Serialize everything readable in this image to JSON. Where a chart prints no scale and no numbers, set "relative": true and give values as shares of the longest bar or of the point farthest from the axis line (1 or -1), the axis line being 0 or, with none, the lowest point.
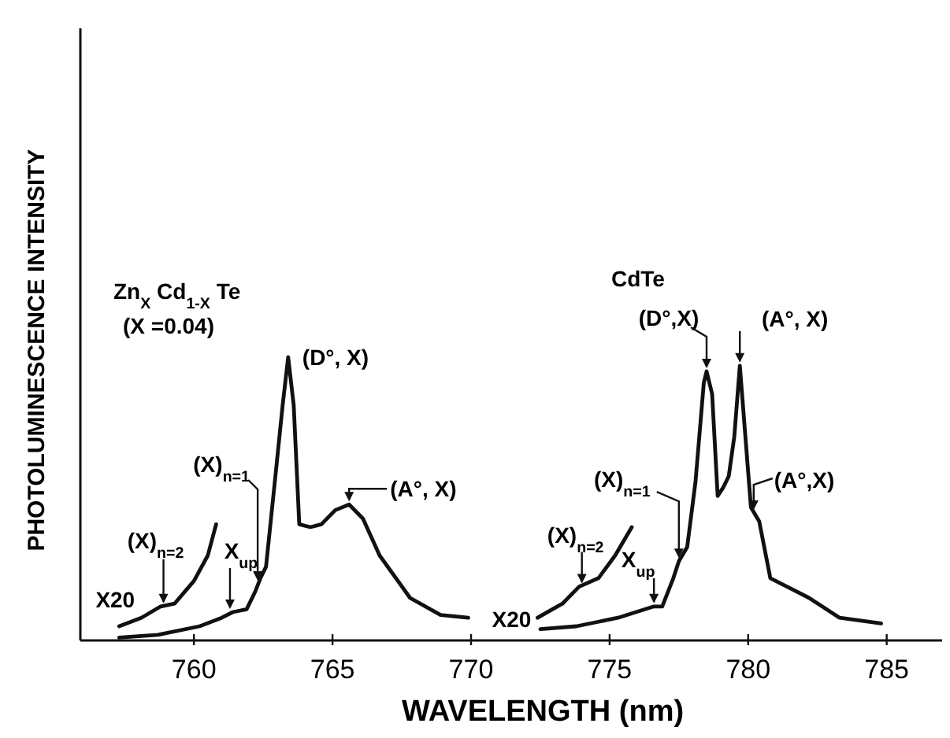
{
  "chart_data": {
    "type": "line",
    "relative": true,
    "xlabel": "WAVELENGTH (nm)",
    "ylabel": "PHOTOLUMINESCENCE INTENSITY",
    "xlim": [
      755.9,
      787
    ],
    "xticks": [
      760,
      765,
      770,
      775,
      780,
      785
    ],
    "grid": false,
    "marker": "none",
    "line_style": "solid",
    "series": [
      {
        "color": "#111111",
        "x": [
          757.3,
          758.7,
          760.2,
          761.0,
          761.4,
          761.9,
          762.2,
          762.4,
          762.6,
          762.95,
          763.2,
          763.4,
          763.6,
          763.8,
          764.2,
          764.6,
          765.1,
          765.6,
          766.1,
          766.7,
          767.8,
          768.9,
          769.9
        ],
        "values": [
          0.01,
          0.02,
          0.05,
          0.08,
          0.1,
          0.11,
          0.17,
          0.22,
          0.26,
          0.59,
          0.83,
          1.0,
          0.83,
          0.41,
          0.4,
          0.41,
          0.46,
          0.48,
          0.43,
          0.3,
          0.15,
          0.09,
          0.08
        ]
      },
      {
        "color": "#111111",
        "x": [
          757.3,
          758.1,
          758.8,
          759.3,
          760.0,
          760.5,
          760.8
        ],
        "values": [
          0.05,
          0.08,
          0.12,
          0.13,
          0.21,
          0.3,
          0.41
        ]
      },
      {
        "color": "#111111",
        "x": [
          772.5,
          773.8,
          775.3,
          776.6,
          776.9,
          777.3,
          777.5,
          777.8,
          778.1,
          778.4,
          778.5,
          778.7,
          778.9,
          779.1,
          779.3,
          779.5,
          779.7,
          779.9,
          780.1,
          780.4,
          780.8,
          781.4,
          782.2,
          783.3,
          784.8
        ],
        "values": [
          0.04,
          0.05,
          0.08,
          0.12,
          0.12,
          0.22,
          0.28,
          0.33,
          0.56,
          0.91,
          0.95,
          0.87,
          0.51,
          0.54,
          0.58,
          0.72,
          0.97,
          0.72,
          0.47,
          0.42,
          0.22,
          0.19,
          0.15,
          0.08,
          0.06
        ]
      },
      {
        "color": "#111111",
        "x": [
          772.4,
          773.3,
          773.9,
          774.6,
          775.2,
          775.8
        ],
        "values": [
          0.08,
          0.13,
          0.19,
          0.22,
          0.3,
          0.4
        ]
      }
    ],
    "annotations": [
      {
        "text": "(X)$_{n=2}$",
        "x": 758.9,
        "y": 0.12
      },
      {
        "text": "X$_{up}$",
        "x": 761.3,
        "y": 0.1
      },
      {
        "text": "(X)$_{n=1}$",
        "x": 762.3,
        "y": 0.2
      },
      {
        "text": "(D°, X)",
        "x": 763.4,
        "y": 1.0
      },
      {
        "text": "(A°, X)",
        "x": 765.6,
        "y": 0.48
      },
      {
        "text": "X20",
        "x": 757.3,
        "y": 0.05
      },
      "Zn$_{X}$ Cd$_{1-X}$ Te",
      "(X =0.04)",
      {
        "text": "(X)$_{n=2}$",
        "x": 774.0,
        "y": 0.19
      },
      {
        "text": "X$_{up}$",
        "x": 776.6,
        "y": 0.12
      },
      {
        "text": "(X)$_{n=1}$",
        "x": 777.5,
        "y": 0.28
      },
      {
        "text": "(D°,X)",
        "x": 778.5,
        "y": 0.95
      },
      {
        "text": "(A°, X)",
        "x": 779.7,
        "y": 0.97
      },
      {
        "text": "(A°,X)",
        "x": 780.2,
        "y": 0.45
      },
      {
        "text": "X20",
        "x": 772.4,
        "y": 0.08
      },
      "CdTe"
    ]
  }
}
